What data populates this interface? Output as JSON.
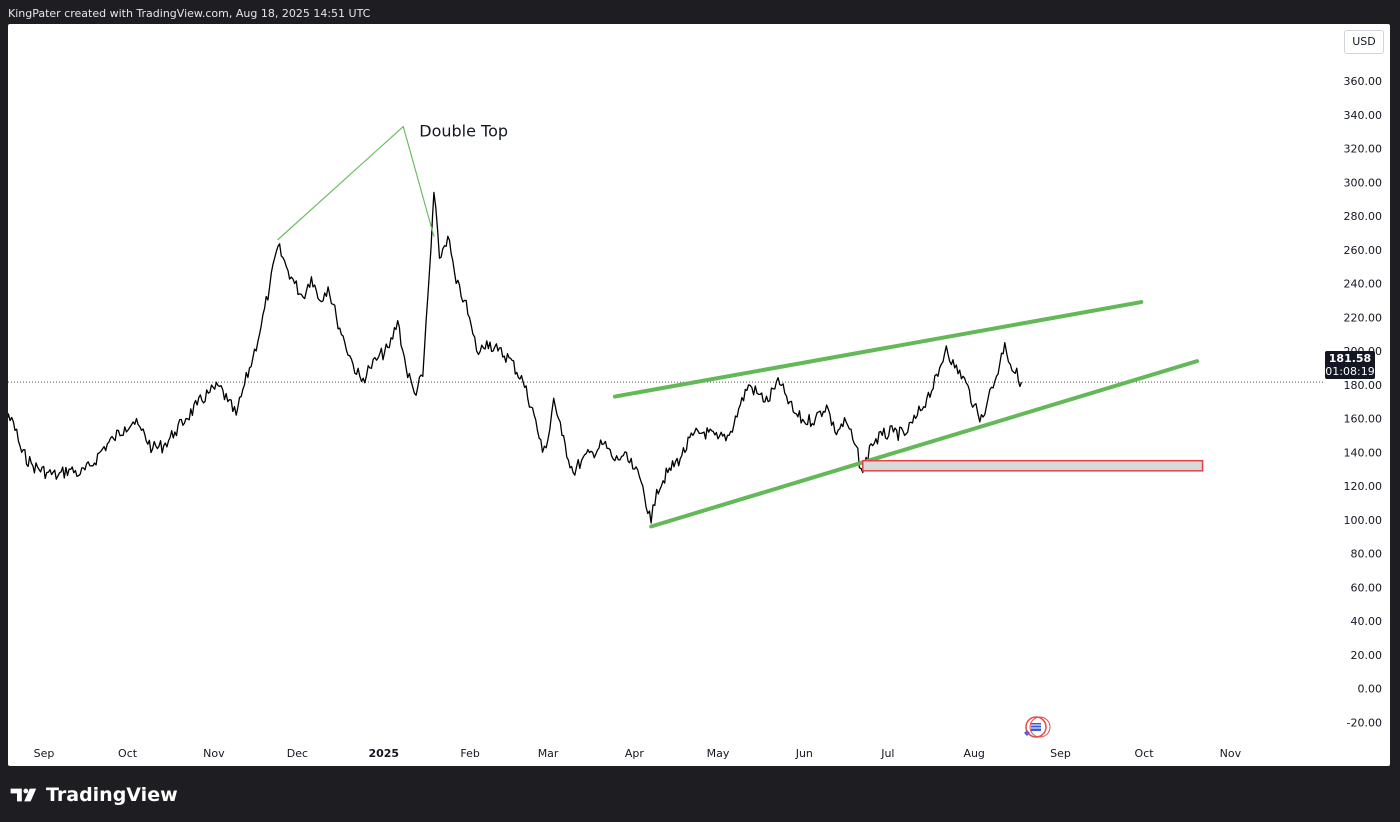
{
  "header": {
    "text": "KingPater created with TradingView.com, Aug 18, 2025 14:51 UTC"
  },
  "footer": {
    "brand": "TradingView"
  },
  "price_scale": {
    "currency": "USD"
  },
  "last_price": {
    "value": "181.58",
    "countdown": "01:08:19"
  },
  "annotation": {
    "label": "Double Top"
  },
  "colors": {
    "line_green": "#6abf60",
    "channel_green": "#63b858",
    "zone_fill": "#d9d9d9",
    "zone_border": "#e0414a",
    "candle": "#000000"
  },
  "chart_data": {
    "type": "line",
    "yaxis": {
      "ticks": [
        "360.00",
        "340.00",
        "320.00",
        "300.00",
        "280.00",
        "260.00",
        "240.00",
        "220.00",
        "200.00",
        "180.00",
        "160.00",
        "140.00",
        "120.00",
        "100.00",
        "80.00",
        "60.00",
        "40.00",
        "20.00",
        "0.00",
        "-20.00"
      ],
      "ylim": [
        -25,
        370
      ]
    },
    "xaxis": {
      "ticks": [
        {
          "label": "Sep",
          "date": "2024-09-01"
        },
        {
          "label": "Oct",
          "date": "2024-10-01"
        },
        {
          "label": "Nov",
          "date": "2024-11-01"
        },
        {
          "label": "Dec",
          "date": "2024-12-01"
        },
        {
          "label": "2025",
          "date": "2025-01-01",
          "bold": true
        },
        {
          "label": "Feb",
          "date": "2025-02-01"
        },
        {
          "label": "Mar",
          "date": "2025-03-01"
        },
        {
          "label": "Apr",
          "date": "2025-04-01"
        },
        {
          "label": "May",
          "date": "2025-05-01"
        },
        {
          "label": "Jun",
          "date": "2025-06-01"
        },
        {
          "label": "Jul",
          "date": "2025-07-01"
        },
        {
          "label": "Aug",
          "date": "2025-08-01"
        },
        {
          "label": "Sep",
          "date": "2025-09-01"
        },
        {
          "label": "Oct",
          "date": "2025-10-01"
        },
        {
          "label": "Nov",
          "date": "2025-11-01"
        }
      ]
    },
    "series": [
      {
        "values": [
          [
            "2024-08-10",
            140
          ],
          [
            "2024-08-14",
            142
          ],
          [
            "2024-08-18",
            160
          ],
          [
            "2024-08-21",
            158
          ],
          [
            "2024-08-24",
            140
          ],
          [
            "2024-08-28",
            132
          ],
          [
            "2024-09-02",
            128
          ],
          [
            "2024-09-06",
            126
          ],
          [
            "2024-09-10",
            130
          ],
          [
            "2024-09-14",
            127
          ],
          [
            "2024-09-18",
            132
          ],
          [
            "2024-09-22",
            142
          ],
          [
            "2024-09-26",
            148
          ],
          [
            "2024-09-30",
            155
          ],
          [
            "2024-10-03",
            158
          ],
          [
            "2024-10-06",
            153
          ],
          [
            "2024-10-10",
            142
          ],
          [
            "2024-10-14",
            144
          ],
          [
            "2024-10-18",
            152
          ],
          [
            "2024-10-22",
            160
          ],
          [
            "2024-10-26",
            168
          ],
          [
            "2024-10-30",
            175
          ],
          [
            "2024-11-03",
            179
          ],
          [
            "2024-11-06",
            170
          ],
          [
            "2024-11-09",
            162
          ],
          [
            "2024-11-12",
            180
          ],
          [
            "2024-11-15",
            196
          ],
          [
            "2024-11-18",
            215
          ],
          [
            "2024-11-21",
            238
          ],
          [
            "2024-11-24",
            262
          ],
          [
            "2024-11-27",
            250
          ],
          [
            "2024-11-30",
            240
          ],
          [
            "2024-12-03",
            232
          ],
          [
            "2024-12-06",
            244
          ],
          [
            "2024-12-09",
            230
          ],
          [
            "2024-12-12",
            238
          ],
          [
            "2024-12-15",
            220
          ],
          [
            "2024-12-18",
            205
          ],
          [
            "2024-12-21",
            192
          ],
          [
            "2024-12-24",
            182
          ],
          [
            "2024-12-27",
            190
          ],
          [
            "2024-12-30",
            196
          ],
          [
            "2025-01-03",
            202
          ],
          [
            "2025-01-06",
            218
          ],
          [
            "2025-01-09",
            190
          ],
          [
            "2025-01-12",
            175
          ],
          [
            "2025-01-15",
            185
          ],
          [
            "2025-01-18",
            262
          ],
          [
            "2025-01-19",
            294
          ],
          [
            "2025-01-21",
            255
          ],
          [
            "2025-01-24",
            268
          ],
          [
            "2025-01-27",
            240
          ],
          [
            "2025-01-30",
            230
          ],
          [
            "2025-02-02",
            210
          ],
          [
            "2025-02-04",
            198
          ],
          [
            "2025-02-07",
            206
          ],
          [
            "2025-02-11",
            200
          ],
          [
            "2025-02-15",
            196
          ],
          [
            "2025-02-20",
            182
          ],
          [
            "2025-02-24",
            162
          ],
          [
            "2025-02-27",
            140
          ],
          [
            "2025-03-01",
            148
          ],
          [
            "2025-03-03",
            172
          ],
          [
            "2025-03-06",
            150
          ],
          [
            "2025-03-10",
            128
          ],
          [
            "2025-03-13",
            135
          ],
          [
            "2025-03-17",
            140
          ],
          [
            "2025-03-21",
            145
          ],
          [
            "2025-03-25",
            135
          ],
          [
            "2025-03-28",
            138
          ],
          [
            "2025-04-01",
            130
          ],
          [
            "2025-04-04",
            120
          ],
          [
            "2025-04-07",
            98
          ],
          [
            "2025-04-09",
            118
          ],
          [
            "2025-04-13",
            128
          ],
          [
            "2025-04-18",
            138
          ],
          [
            "2025-04-22",
            150
          ],
          [
            "2025-04-26",
            152
          ],
          [
            "2025-05-01",
            148
          ],
          [
            "2025-05-05",
            150
          ],
          [
            "2025-05-09",
            168
          ],
          [
            "2025-05-12",
            180
          ],
          [
            "2025-05-15",
            175
          ],
          [
            "2025-05-19",
            170
          ],
          [
            "2025-05-22",
            182
          ],
          [
            "2025-05-25",
            175
          ],
          [
            "2025-05-28",
            164
          ],
          [
            "2025-06-01",
            158
          ],
          [
            "2025-06-05",
            160
          ],
          [
            "2025-06-09",
            168
          ],
          [
            "2025-06-12",
            152
          ],
          [
            "2025-06-16",
            158
          ],
          [
            "2025-06-19",
            145
          ],
          [
            "2025-06-22",
            128
          ],
          [
            "2025-06-25",
            145
          ],
          [
            "2025-06-29",
            150
          ],
          [
            "2025-07-03",
            152
          ],
          [
            "2025-07-07",
            150
          ],
          [
            "2025-07-11",
            160
          ],
          [
            "2025-07-15",
            172
          ],
          [
            "2025-07-19",
            185
          ],
          [
            "2025-07-22",
            203
          ],
          [
            "2025-07-25",
            190
          ],
          [
            "2025-07-28",
            185
          ],
          [
            "2025-08-01",
            168
          ],
          [
            "2025-08-03",
            158
          ],
          [
            "2025-08-06",
            172
          ],
          [
            "2025-08-09",
            185
          ],
          [
            "2025-08-12",
            205
          ],
          [
            "2025-08-14",
            192
          ],
          [
            "2025-08-18",
            181.58
          ]
        ]
      }
    ],
    "drawings": {
      "double_top_lines": [
        [
          [
            "2024-11-24",
            266
          ],
          [
            "2025-01-08",
            333
          ]
        ],
        [
          [
            "2025-01-08",
            333
          ],
          [
            "2025-01-19",
            268
          ]
        ]
      ],
      "channel_upper": [
        [
          "2025-03-25",
          173
        ],
        [
          "2025-09-30",
          229
        ]
      ],
      "channel_lower": [
        [
          "2025-04-07",
          96
        ],
        [
          "2025-10-20",
          194
        ]
      ],
      "support_zone": {
        "x0": "2025-06-22",
        "x1": "2025-10-22",
        "y_low": 129,
        "y_high": 135
      },
      "last_price_line": 181.58
    }
  }
}
